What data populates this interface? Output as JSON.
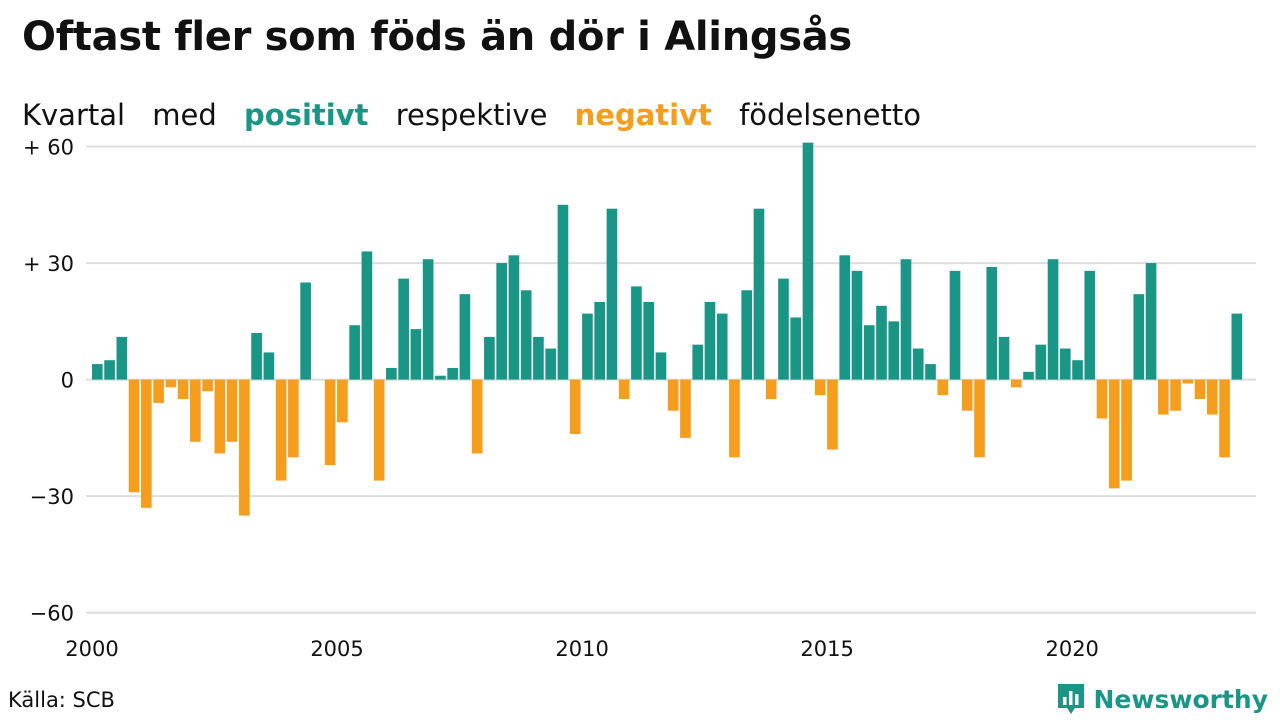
{
  "title": "Oftast fler som föds än dör i Alingsås",
  "subtitle": {
    "part1": "Kvartal",
    "part2": "med",
    "positive_word": "positivt",
    "part3": "respektive",
    "negative_word": "negativt",
    "part4": "födelsenetto"
  },
  "colors": {
    "positive": "#1a9686",
    "negative": "#f59d1d",
    "grid": "#dddddd",
    "text": "#111111"
  },
  "source": "Källa: SCB",
  "brand": {
    "name": "Newsworthy",
    "icon": "bar-chart-logo-icon"
  },
  "chart_data": {
    "type": "bar",
    "ylim": [
      -66,
      64
    ],
    "xlim": [
      2000,
      2023.75
    ],
    "yticks": [
      {
        "value": 60,
        "label": "+ 60"
      },
      {
        "value": 30,
        "label": "+ 30"
      },
      {
        "value": 0,
        "label": "0"
      },
      {
        "value": -30,
        "label": "−30"
      },
      {
        "value": -60,
        "label": "−60"
      }
    ],
    "xticks": [
      {
        "value": 2000,
        "label": "2000"
      },
      {
        "value": 2005,
        "label": "2005"
      },
      {
        "value": 2010,
        "label": "2010"
      },
      {
        "value": 2015,
        "label": "2015"
      },
      {
        "value": 2020,
        "label": "2020"
      }
    ],
    "grid": true,
    "start_year": 2000,
    "values": [
      4,
      5,
      11,
      -29,
      -33,
      -6,
      -2,
      -5,
      -16,
      -3,
      -19,
      -16,
      -35,
      12,
      7,
      -26,
      -20,
      25,
      0,
      -22,
      -11,
      14,
      33,
      -26,
      3,
      26,
      13,
      31,
      1,
      3,
      22,
      -19,
      11,
      30,
      32,
      23,
      11,
      8,
      45,
      -14,
      17,
      20,
      44,
      -5,
      24,
      20,
      7,
      -8,
      -15,
      9,
      20,
      17,
      -20,
      23,
      44,
      -5,
      26,
      16,
      61,
      -4,
      -18,
      32,
      28,
      14,
      19,
      15,
      31,
      8,
      4,
      -4,
      28,
      -8,
      -20,
      29,
      11,
      -2,
      2,
      9,
      31,
      8,
      5,
      28,
      -10,
      -28,
      -26,
      22,
      30,
      -9,
      -8,
      -1,
      -5,
      -9,
      -20,
      17
    ]
  }
}
